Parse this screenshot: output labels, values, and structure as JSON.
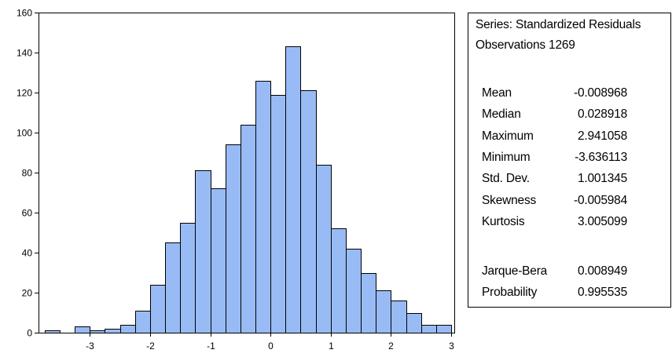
{
  "chart_data": {
    "type": "bar",
    "bin_width": 0.25,
    "bins": [
      {
        "x0": -3.75,
        "x1": -3.5,
        "count": 1
      },
      {
        "x0": -3.5,
        "x1": -3.25,
        "count": 0
      },
      {
        "x0": -3.25,
        "x1": -3.0,
        "count": 3
      },
      {
        "x0": -3.0,
        "x1": -2.75,
        "count": 1
      },
      {
        "x0": -2.75,
        "x1": -2.5,
        "count": 2
      },
      {
        "x0": -2.5,
        "x1": -2.25,
        "count": 4
      },
      {
        "x0": -2.25,
        "x1": -2.0,
        "count": 11
      },
      {
        "x0": -2.0,
        "x1": -1.75,
        "count": 24
      },
      {
        "x0": -1.75,
        "x1": -1.5,
        "count": 45
      },
      {
        "x0": -1.5,
        "x1": -1.25,
        "count": 55
      },
      {
        "x0": -1.25,
        "x1": -1.0,
        "count": 81
      },
      {
        "x0": -1.0,
        "x1": -0.75,
        "count": 72
      },
      {
        "x0": -0.75,
        "x1": -0.5,
        "count": 94
      },
      {
        "x0": -0.5,
        "x1": -0.25,
        "count": 104
      },
      {
        "x0": -0.25,
        "x1": 0.0,
        "count": 126
      },
      {
        "x0": 0.0,
        "x1": 0.25,
        "count": 119
      },
      {
        "x0": 0.25,
        "x1": 0.5,
        "count": 143
      },
      {
        "x0": 0.5,
        "x1": 0.75,
        "count": 121
      },
      {
        "x0": 0.75,
        "x1": 1.0,
        "count": 84
      },
      {
        "x0": 1.0,
        "x1": 1.25,
        "count": 52
      },
      {
        "x0": 1.25,
        "x1": 1.5,
        "count": 42
      },
      {
        "x0": 1.5,
        "x1": 1.75,
        "count": 30
      },
      {
        "x0": 1.75,
        "x1": 2.0,
        "count": 21
      },
      {
        "x0": 2.0,
        "x1": 2.25,
        "count": 16
      },
      {
        "x0": 2.25,
        "x1": 2.5,
        "count": 10
      },
      {
        "x0": 2.5,
        "x1": 2.75,
        "count": 4
      },
      {
        "x0": 2.75,
        "x1": 3.0,
        "count": 4
      }
    ],
    "xlim": [
      -3.85,
      3.05
    ],
    "ylim": [
      0,
      160
    ],
    "x_ticks": [
      {
        "value": -3,
        "label": "-3"
      },
      {
        "value": -2,
        "label": "-2"
      },
      {
        "value": -1,
        "label": "-1"
      },
      {
        "value": 0,
        "label": "0"
      },
      {
        "value": 1,
        "label": "1"
      },
      {
        "value": 2,
        "label": "2"
      },
      {
        "value": 3,
        "label": "3"
      }
    ],
    "y_ticks": [
      {
        "value": 0,
        "label": "0"
      },
      {
        "value": 20,
        "label": "20"
      },
      {
        "value": 40,
        "label": "40"
      },
      {
        "value": 60,
        "label": "60"
      },
      {
        "value": 80,
        "label": "80"
      },
      {
        "value": 100,
        "label": "100"
      },
      {
        "value": 120,
        "label": "120"
      },
      {
        "value": 140,
        "label": "140"
      },
      {
        "value": 160,
        "label": "160"
      }
    ],
    "grid": false,
    "xlabel": "",
    "ylabel": "",
    "title": ""
  },
  "colors": {
    "bar_fill": "#99bbf5",
    "bar_stroke": "#000000"
  },
  "stats": {
    "series": "Series: Standardized Residuals",
    "observations": "Observations 1269",
    "rows": [
      {
        "label": "Mean",
        "value": "-0.008968"
      },
      {
        "label": "Median",
        "value": "0.028918"
      },
      {
        "label": "Maximum",
        "value": "2.941058"
      },
      {
        "label": "Minimum",
        "value": "-3.636113"
      },
      {
        "label": "Std. Dev.",
        "value": "1.001345"
      },
      {
        "label": "Skewness",
        "value": "-0.005984"
      },
      {
        "label": "Kurtosis",
        "value": "3.005099"
      }
    ],
    "test_rows": [
      {
        "label": "Jarque-Bera",
        "value": "0.008949"
      },
      {
        "label": "Probability",
        "value": "0.995535"
      }
    ]
  }
}
